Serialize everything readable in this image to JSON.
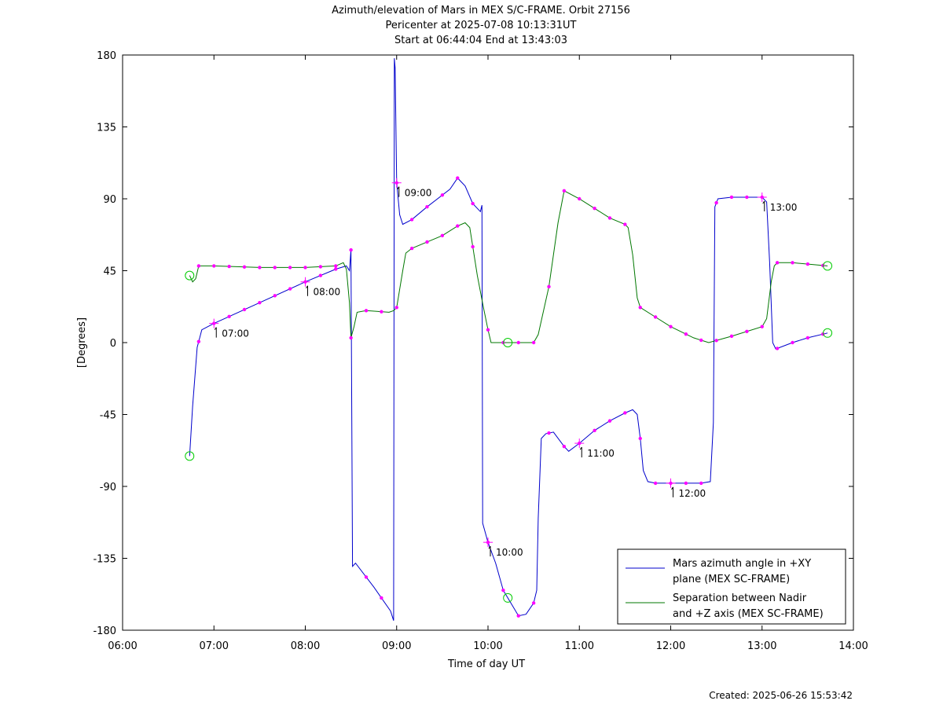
{
  "chart_data": {
    "type": "line",
    "title": "Azimuth/elevation of Mars in MEX S/C-FRAME.  Orbit 27156",
    "subtitle": "Pericenter at 2025-07-08 10:13:31UT",
    "subtitle2": "Start at 06:44:04 End at 13:43:03",
    "xlabel": "Time of day UT",
    "ylabel": "[Degrees]",
    "xlim": [
      "06:00",
      "14:00"
    ],
    "ylim": [
      -180,
      180
    ],
    "x_ticks": [
      "06:00",
      "07:00",
      "08:00",
      "09:00",
      "10:00",
      "11:00",
      "12:00",
      "13:00",
      "14:00"
    ],
    "y_ticks": [
      180,
      135,
      90,
      45,
      0,
      -45,
      -90,
      -135,
      -180
    ],
    "grid": false,
    "legend_position": "bottom-right",
    "footer": "Created: 2025-06-26 15:53:42",
    "series": [
      {
        "name": "Mars azimuth angle in +XY plane (MEX SC-FRAME)",
        "name_line1": "Mars azimuth angle in +XY",
        "name_line2": "plane (MEX SC-FRAME)",
        "color": "#0000cc",
        "points": [
          [
            "06:44",
            -71
          ],
          [
            "06:46",
            -40
          ],
          [
            "06:49",
            -3
          ],
          [
            "06:52",
            8
          ],
          [
            "07:00",
            12
          ],
          [
            "07:30",
            25
          ],
          [
            "08:00",
            38
          ],
          [
            "08:20",
            46
          ],
          [
            "08:27",
            48
          ],
          [
            "08:29",
            45
          ],
          [
            "08:30",
            58
          ],
          [
            "08:31",
            -140
          ],
          [
            "08:33",
            -138
          ],
          [
            "08:45",
            -153
          ],
          [
            "08:56",
            -168
          ],
          [
            "08:58",
            -174
          ],
          [
            "08:58.5",
            178
          ],
          [
            "08:59",
            172
          ],
          [
            "09:00",
            100
          ],
          [
            "09:02",
            80
          ],
          [
            "09:04",
            74
          ],
          [
            "09:10",
            77
          ],
          [
            "09:20",
            85
          ],
          [
            "09:35",
            96
          ],
          [
            "09:40",
            103
          ],
          [
            "09:45",
            98
          ],
          [
            "09:50",
            87
          ],
          [
            "09:55",
            82
          ],
          [
            "09:56",
            86
          ],
          [
            "09:56.5",
            -113
          ],
          [
            "10:00",
            -125
          ],
          [
            "10:05",
            -138
          ],
          [
            "10:10",
            -155
          ],
          [
            "10:15",
            -163
          ],
          [
            "10:20",
            -171
          ],
          [
            "10:25",
            -170
          ],
          [
            "10:30",
            -163
          ],
          [
            "10:32",
            -155
          ],
          [
            "10:33",
            -110
          ],
          [
            "10:35",
            -60
          ],
          [
            "10:38",
            -57
          ],
          [
            "10:43",
            -56
          ],
          [
            "10:50",
            -65
          ],
          [
            "10:53",
            -68
          ],
          [
            "11:00",
            -63
          ],
          [
            "11:10",
            -55
          ],
          [
            "11:20",
            -49
          ],
          [
            "11:30",
            -44
          ],
          [
            "11:35",
            -42
          ],
          [
            "11:38",
            -45
          ],
          [
            "11:40",
            -60
          ],
          [
            "11:42",
            -80
          ],
          [
            "11:45",
            -87
          ],
          [
            "11:50",
            -88
          ],
          [
            "12:00",
            -88
          ],
          [
            "12:20",
            -88
          ],
          [
            "12:26",
            -87
          ],
          [
            "12:28",
            -50
          ],
          [
            "12:29",
            85
          ],
          [
            "12:31",
            90
          ],
          [
            "12:40",
            91
          ],
          [
            "13:00",
            91
          ],
          [
            "13:03",
            88
          ],
          [
            "13:05",
            50
          ],
          [
            "13:07",
            0
          ],
          [
            "13:09",
            -4
          ],
          [
            "13:20",
            0
          ],
          [
            "13:30",
            3
          ],
          [
            "13:43",
            6
          ]
        ]
      },
      {
        "name": "Separation between Nadir and +Z axis (MEX SC-FRAME)",
        "name_line1": "Separation between Nadir",
        "name_line2": "and +Z axis (MEX SC-FRAME)",
        "color": "#007700",
        "points": [
          [
            "06:44",
            42
          ],
          [
            "06:46",
            38
          ],
          [
            "06:48",
            40
          ],
          [
            "06:50",
            48
          ],
          [
            "07:00",
            48
          ],
          [
            "07:30",
            47
          ],
          [
            "08:00",
            47
          ],
          [
            "08:20",
            48
          ],
          [
            "08:25",
            50
          ],
          [
            "08:27",
            46
          ],
          [
            "08:29",
            25
          ],
          [
            "08:30",
            3
          ],
          [
            "08:32",
            10
          ],
          [
            "08:34",
            19
          ],
          [
            "08:40",
            20
          ],
          [
            "08:55",
            19
          ],
          [
            "08:58",
            20
          ],
          [
            "09:00",
            22
          ],
          [
            "09:04",
            45
          ],
          [
            "09:06",
            56
          ],
          [
            "09:10",
            59
          ],
          [
            "09:20",
            63
          ],
          [
            "09:30",
            67
          ],
          [
            "09:40",
            73
          ],
          [
            "09:45",
            75
          ],
          [
            "09:48",
            72
          ],
          [
            "09:53",
            42
          ],
          [
            "09:57",
            22
          ],
          [
            "10:00",
            8
          ],
          [
            "10:02",
            0
          ],
          [
            "10:10",
            0
          ],
          [
            "10:30",
            0
          ],
          [
            "10:33",
            5
          ],
          [
            "10:40",
            35
          ],
          [
            "10:46",
            75
          ],
          [
            "10:50",
            95
          ],
          [
            "11:00",
            90
          ],
          [
            "11:10",
            84
          ],
          [
            "11:20",
            78
          ],
          [
            "11:30",
            74
          ],
          [
            "11:32",
            72
          ],
          [
            "11:35",
            55
          ],
          [
            "11:38",
            28
          ],
          [
            "11:40",
            22
          ],
          [
            "11:50",
            16
          ],
          [
            "12:00",
            10
          ],
          [
            "12:15",
            3
          ],
          [
            "12:25",
            0
          ],
          [
            "12:40",
            4
          ],
          [
            "13:00",
            10
          ],
          [
            "13:03",
            15
          ],
          [
            "13:05",
            30
          ],
          [
            "13:06",
            38
          ],
          [
            "13:08",
            48
          ],
          [
            "13:10",
            50
          ],
          [
            "13:20",
            50
          ],
          [
            "13:43",
            48
          ]
        ]
      }
    ],
    "markers": [
      {
        "series": 0,
        "x": "06:44",
        "type": "circle"
      },
      {
        "series": 1,
        "x": "06:44",
        "type": "circle"
      },
      {
        "series": 1,
        "x": "10:13",
        "type": "circle"
      },
      {
        "series": 0,
        "x": "10:13",
        "type": "circle"
      },
      {
        "series": 0,
        "x": "13:43",
        "type": "circle"
      },
      {
        "series": 1,
        "x": "13:43",
        "type": "circle"
      }
    ],
    "hour_marks": [
      {
        "label": "07:00",
        "series": 0,
        "x": "07:00"
      },
      {
        "label": "08:00",
        "series": 0,
        "x": "08:00"
      },
      {
        "label": "09:00",
        "series": 0,
        "x": "09:00"
      },
      {
        "label": "10:00",
        "series": 0,
        "x": "10:00"
      },
      {
        "label": "11:00",
        "series": 0,
        "x": "11:00"
      },
      {
        "label": "12:00",
        "series": 0,
        "x": "12:00"
      },
      {
        "label": "13:00",
        "series": 0,
        "x": "13:00"
      }
    ],
    "minute_dot_color": "#ff00ff",
    "marker_circle_color": "#00cc00"
  }
}
